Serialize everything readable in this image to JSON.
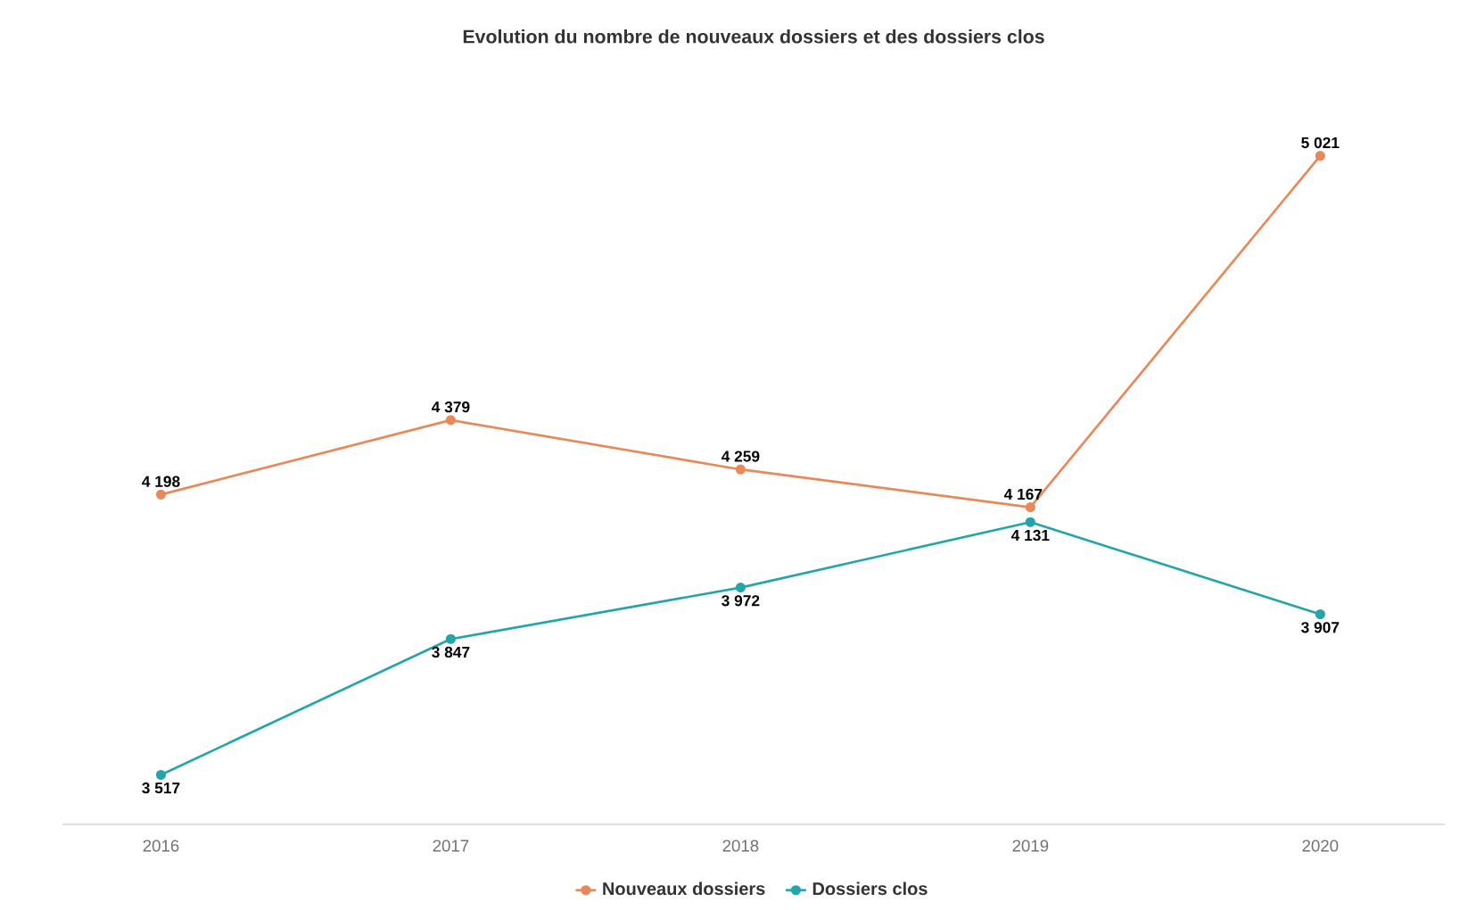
{
  "chart_data": {
    "type": "line",
    "title": "Evolution du nombre de nouveaux dossiers et des dossiers clos",
    "categories": [
      "2016",
      "2017",
      "2018",
      "2019",
      "2020"
    ],
    "series": [
      {
        "name": "Nouveaux dossiers",
        "color": "#e8895a",
        "values": [
          4198,
          4379,
          4259,
          4167,
          5021
        ],
        "value_labels": [
          "4 198",
          "4 379",
          "4 259",
          "4 167",
          "5 021"
        ]
      },
      {
        "name": "Dossiers clos",
        "color": "#22a5ab",
        "values": [
          3517,
          3847,
          3972,
          4131,
          3907
        ],
        "value_labels": [
          "3 517",
          "3 847",
          "3 972",
          "4 131",
          "3 907"
        ]
      }
    ],
    "legend": "bottom",
    "marker": "circle",
    "line_style": "solid",
    "grid": false
  }
}
